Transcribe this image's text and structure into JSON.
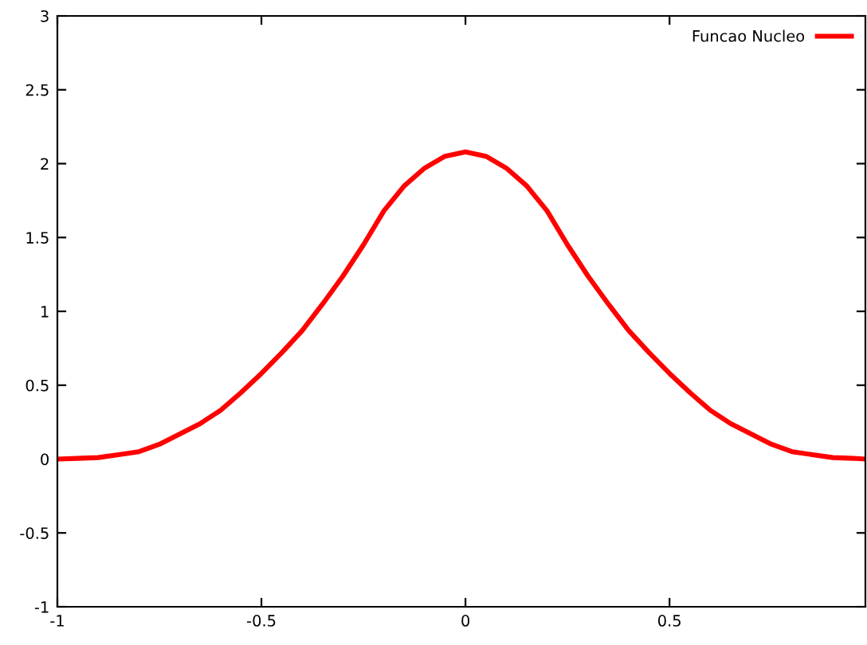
{
  "chart_data": {
    "type": "line",
    "x": [
      -1,
      -0.95,
      -0.9,
      -0.85,
      -0.8,
      -0.75,
      -0.7,
      -0.65,
      -0.6,
      -0.55,
      -0.5,
      -0.45,
      -0.4,
      -0.35,
      -0.3,
      -0.25,
      -0.2,
      -0.15,
      -0.1,
      -0.05,
      0,
      0.05,
      0.1,
      0.15,
      0.2,
      0.25,
      0.3,
      0.35,
      0.4,
      0.45,
      0.5,
      0.55,
      0.6,
      0.65,
      0.7,
      0.75,
      0.8,
      0.85,
      0.9,
      0.95,
      0.98
    ],
    "series": [
      {
        "name": "Funcao Nucleo",
        "color": "#ff0000",
        "values": [
          0,
          0.005,
          0.01,
          0.03,
          0.05,
          0.1,
          0.17,
          0.24,
          0.33,
          0.45,
          0.58,
          0.72,
          0.87,
          1.05,
          1.24,
          1.45,
          1.68,
          1.85,
          1.97,
          2.05,
          2.08,
          2.05,
          1.97,
          1.85,
          1.68,
          1.45,
          1.24,
          1.05,
          0.87,
          0.72,
          0.58,
          0.45,
          0.33,
          0.24,
          0.17,
          0.1,
          0.05,
          0.03,
          0.01,
          0.005,
          0
        ]
      }
    ],
    "xlim": [
      -1,
      0.98
    ],
    "ylim": [
      -1,
      3
    ],
    "xticks": [
      -1,
      -0.5,
      0,
      0.5
    ],
    "yticks": [
      -1,
      -0.5,
      0,
      0.5,
      1,
      1.5,
      2,
      2.5,
      3
    ],
    "legend": "top right",
    "grid": false,
    "line_style": "solid",
    "marker": "none"
  }
}
